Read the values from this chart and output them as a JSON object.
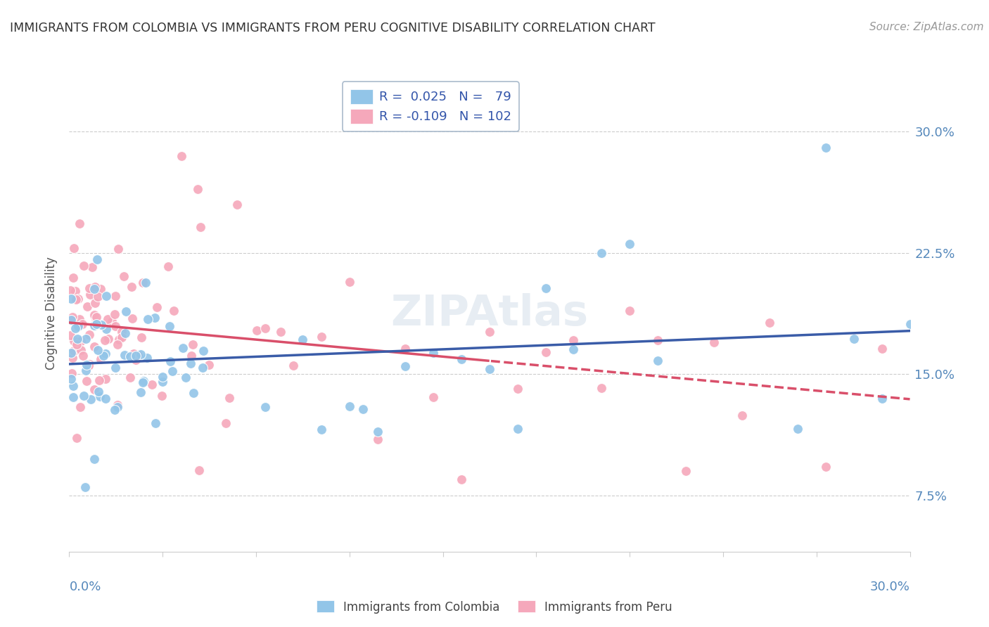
{
  "title": "IMMIGRANTS FROM COLOMBIA VS IMMIGRANTS FROM PERU COGNITIVE DISABILITY CORRELATION CHART",
  "source": "Source: ZipAtlas.com",
  "ylabel": "Cognitive Disability",
  "yticks_labels": [
    "7.5%",
    "15.0%",
    "22.5%",
    "30.0%"
  ],
  "ytick_vals": [
    0.075,
    0.15,
    0.225,
    0.3
  ],
  "xlim": [
    0.0,
    0.3
  ],
  "ylim": [
    0.04,
    0.335
  ],
  "legend_blue_R": "0.025",
  "legend_blue_N": "79",
  "legend_pink_R": "-0.109",
  "legend_pink_N": "102",
  "blue_color": "#92C5E8",
  "pink_color": "#F5A8BB",
  "blue_line_color": "#3A5CA8",
  "pink_line_color": "#D94F6A",
  "title_color": "#333333",
  "source_color": "#999999",
  "axis_color": "#5588BB",
  "legend_text_color": "#3355AA",
  "grid_color": "#CCCCCC",
  "background_color": "#FFFFFF",
  "marker_size": 100,
  "marker_edge_color": "#FFFFFF",
  "marker_edge_width": 0.8,
  "line_width": 2.5
}
